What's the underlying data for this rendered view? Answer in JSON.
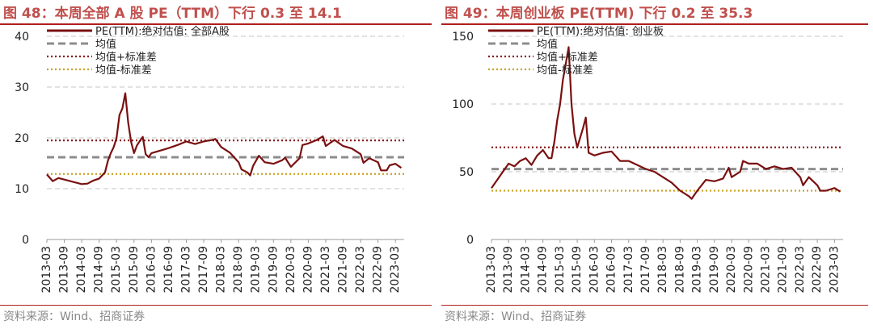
{
  "colors": {
    "title": "#c0504d",
    "rule": "#b01e1e",
    "pe_line": "#7a1010",
    "mean_line": "#8c8c8c",
    "plus_sd_line": "#8b1a1a",
    "minus_sd_line": "#c9a227",
    "source": "#888888"
  },
  "charts": [
    {
      "title": "图 48：本周全部 A 股 PE（TTM）下行 0.3 至 14.1",
      "source": "资料来源：Wind、招商证券",
      "legend": [
        {
          "label": "PE(TTM):绝对估值: 全部A股",
          "style": "solid",
          "color_key": "pe_line"
        },
        {
          "label": "均值",
          "style": "dashed",
          "color_key": "mean_line"
        },
        {
          "label": "均值+标准差",
          "style": "dotted",
          "color_key": "plus_sd_line"
        },
        {
          "label": "均值-标准差",
          "style": "dotted",
          "color_key": "minus_sd_line"
        }
      ]
    },
    {
      "title": "图 49：本周创业板 PE(TTM) 下行 0.2 至 35.3",
      "source": "资料来源：Wind、招商证券",
      "legend": [
        {
          "label": "PE(TTM):绝对估值: 创业板",
          "style": "solid",
          "color_key": "pe_line"
        },
        {
          "label": "均值",
          "style": "dashed",
          "color_key": "mean_line"
        },
        {
          "label": "均值+标准差",
          "style": "dotted",
          "color_key": "plus_sd_line"
        },
        {
          "label": "均值-标准差",
          "style": "dotted",
          "color_key": "minus_sd_line"
        }
      ]
    }
  ],
  "chart_data": [
    {
      "type": "line",
      "x_tick_labels": [
        "2013-03",
        "2013-09",
        "2014-03",
        "2014-09",
        "2015-03",
        "2015-09",
        "2016-03",
        "2016-09",
        "2017-03",
        "2017-09",
        "2018-03",
        "2018-09",
        "2019-03",
        "2019-09",
        "2020-03",
        "2020-09",
        "2021-03",
        "2021-09",
        "2022-03",
        "2022-09",
        "2023-03"
      ],
      "ylim": [
        0,
        40
      ],
      "y_ticks": [
        0,
        10,
        20,
        30,
        40
      ],
      "grid": "horizontal dashed",
      "legend_position": "top",
      "reference_lines": {
        "mean": 16.2,
        "plus_sd": 19.5,
        "minus_sd": 12.9
      },
      "series": [
        {
          "name": "PE(TTM):绝对估值: 全部A股",
          "x": [
            "2013-03",
            "2013-05",
            "2013-07",
            "2013-09",
            "2013-11",
            "2014-01",
            "2014-03",
            "2014-05",
            "2014-07",
            "2014-09",
            "2014-11",
            "2014-12",
            "2015-01",
            "2015-02",
            "2015-03",
            "2015-04",
            "2015-05",
            "2015-06",
            "2015-07",
            "2015-08",
            "2015-09",
            "2015-10",
            "2015-11",
            "2015-12",
            "2016-01",
            "2016-02",
            "2016-03",
            "2016-06",
            "2016-09",
            "2016-12",
            "2017-03",
            "2017-06",
            "2017-09",
            "2017-12",
            "2018-01",
            "2018-03",
            "2018-06",
            "2018-09",
            "2018-10",
            "2018-12",
            "2019-01",
            "2019-02",
            "2019-04",
            "2019-06",
            "2019-09",
            "2019-12",
            "2020-01",
            "2020-03",
            "2020-06",
            "2020-07",
            "2020-09",
            "2020-12",
            "2021-02",
            "2021-03",
            "2021-06",
            "2021-09",
            "2021-12",
            "2022-03",
            "2022-04",
            "2022-06",
            "2022-09",
            "2022-10",
            "2022-12",
            "2023-01",
            "2023-03",
            "2023-05"
          ],
          "values": [
            12.8,
            11.5,
            12.1,
            11.8,
            11.5,
            11.2,
            10.9,
            11.0,
            11.6,
            12.0,
            13.2,
            15.5,
            17.0,
            18.2,
            20.0,
            24.5,
            25.8,
            28.8,
            23.0,
            19.2,
            17.0,
            18.5,
            19.4,
            20.2,
            16.8,
            16.2,
            17.0,
            17.5,
            18.0,
            18.6,
            19.3,
            18.8,
            19.3,
            19.6,
            19.8,
            18.2,
            17.1,
            15.2,
            13.8,
            13.2,
            12.6,
            14.5,
            16.5,
            15.2,
            14.9,
            15.6,
            16.1,
            14.3,
            16.0,
            18.6,
            18.9,
            19.6,
            20.3,
            18.4,
            19.6,
            18.4,
            17.9,
            16.8,
            15.1,
            16.0,
            15.2,
            13.6,
            13.6,
            14.6,
            14.9,
            14.1
          ]
        }
      ]
    },
    {
      "type": "line",
      "x_tick_labels": [
        "2013-03",
        "2013-09",
        "2014-03",
        "2014-09",
        "2015-03",
        "2015-09",
        "2016-03",
        "2016-09",
        "2017-03",
        "2017-09",
        "2018-03",
        "2018-09",
        "2019-03",
        "2019-09",
        "2020-03",
        "2020-09",
        "2021-03",
        "2021-09",
        "2022-03",
        "2022-09",
        "2023-03"
      ],
      "ylim": [
        0,
        150
      ],
      "y_ticks": [
        0,
        50,
        100,
        150
      ],
      "grid": "horizontal dashed",
      "legend_position": "top",
      "reference_lines": {
        "mean": 52.0,
        "plus_sd": 68.0,
        "minus_sd": 36.0
      },
      "series": [
        {
          "name": "PE(TTM):绝对估值: 创业板",
          "x": [
            "2013-03",
            "2013-05",
            "2013-07",
            "2013-09",
            "2013-11",
            "2014-01",
            "2014-03",
            "2014-05",
            "2014-07",
            "2014-09",
            "2014-11",
            "2014-12",
            "2015-01",
            "2015-02",
            "2015-03",
            "2015-04",
            "2015-05",
            "2015-06",
            "2015-07",
            "2015-08",
            "2015-09",
            "2015-11",
            "2015-12",
            "2016-01",
            "2016-03",
            "2016-06",
            "2016-09",
            "2016-12",
            "2017-03",
            "2017-06",
            "2017-09",
            "2017-12",
            "2018-03",
            "2018-06",
            "2018-09",
            "2018-12",
            "2019-01",
            "2019-03",
            "2019-06",
            "2019-09",
            "2019-12",
            "2020-02",
            "2020-03",
            "2020-06",
            "2020-07",
            "2020-09",
            "2020-12",
            "2021-03",
            "2021-06",
            "2021-09",
            "2021-12",
            "2022-03",
            "2022-04",
            "2022-06",
            "2022-09",
            "2022-10",
            "2022-12",
            "2023-03",
            "2023-05"
          ],
          "values": [
            38,
            44,
            50,
            56,
            54,
            58,
            60,
            55,
            62,
            66,
            60,
            60,
            72,
            88,
            100,
            118,
            130,
            142,
            100,
            78,
            68,
            82,
            90,
            64,
            62,
            64,
            65,
            58,
            58,
            55,
            52,
            50,
            46,
            42,
            36,
            32,
            30,
            36,
            44,
            43,
            45,
            53,
            46,
            50,
            58,
            56,
            56,
            52,
            54,
            52,
            53,
            46,
            40,
            46,
            40,
            36,
            36,
            38,
            35.3
          ]
        }
      ]
    }
  ]
}
